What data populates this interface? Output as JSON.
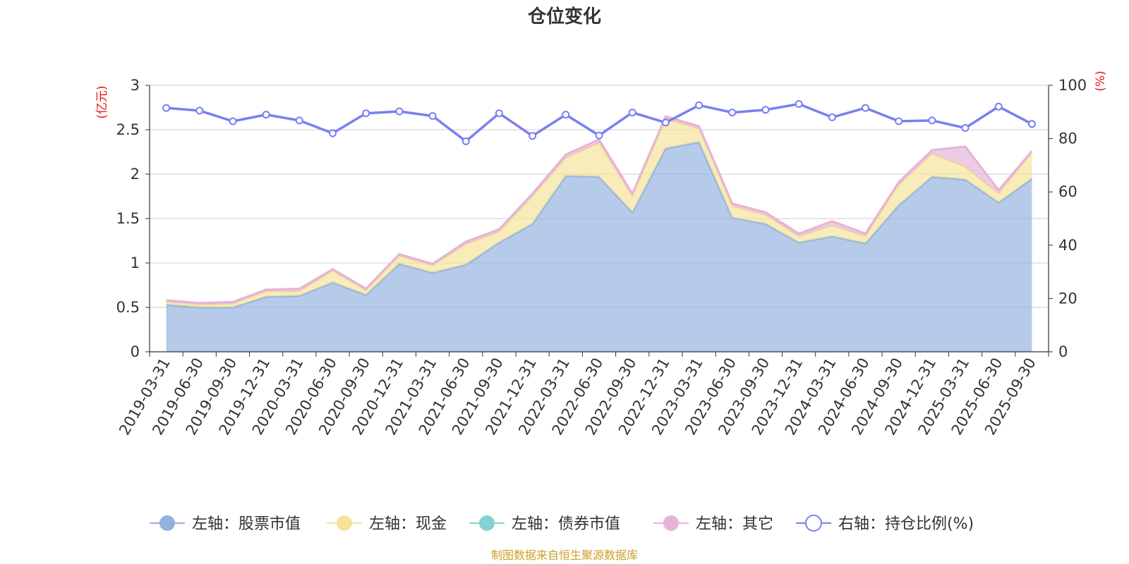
{
  "chart_data": {
    "type": "area",
    "title": "仓位变化",
    "left_axis": {
      "unit": "(亿元)",
      "min": 0,
      "max": 3,
      "ticks": [
        "0",
        "0.5",
        "1",
        "1.5",
        "2",
        "2.5",
        "3"
      ]
    },
    "right_axis": {
      "unit": "(%)",
      "min": 0,
      "max": 100,
      "ticks": [
        "0",
        "20",
        "40",
        "60",
        "80",
        "100"
      ]
    },
    "grid": true,
    "legend_position": "bottom",
    "categories": [
      "2019-03-31",
      "2019-06-30",
      "2019-09-30",
      "2019-12-31",
      "2020-03-31",
      "2020-06-30",
      "2020-09-30",
      "2020-12-31",
      "2021-03-31",
      "2021-06-30",
      "2021-09-30",
      "2021-12-31",
      "2022-03-31",
      "2022-06-30",
      "2022-09-30",
      "2022-12-31",
      "2023-03-31",
      "2023-06-30",
      "2023-09-30",
      "2023-12-31",
      "2024-03-31",
      "2024-06-30",
      "2024-09-30",
      "2024-12-31",
      "2025-03-31",
      "2025-06-30",
      "2025-09-30"
    ],
    "series": [
      {
        "name": "左轴：股票市值",
        "axis": "left",
        "stacked": true,
        "color": "#93b1e0",
        "values": [
          0.53,
          0.5,
          0.5,
          0.62,
          0.63,
          0.78,
          0.64,
          0.99,
          0.89,
          0.98,
          1.23,
          1.44,
          1.98,
          1.97,
          1.57,
          2.29,
          2.36,
          1.51,
          1.44,
          1.23,
          1.3,
          1.22,
          1.65,
          1.97,
          1.94,
          1.68,
          1.95
        ]
      },
      {
        "name": "左轴：现金",
        "axis": "left",
        "stacked": true,
        "color": "#f5e49a",
        "values": [
          0.03,
          0.03,
          0.04,
          0.06,
          0.05,
          0.13,
          0.05,
          0.09,
          0.08,
          0.23,
          0.12,
          0.31,
          0.2,
          0.38,
          0.18,
          0.33,
          0.15,
          0.13,
          0.1,
          0.07,
          0.12,
          0.08,
          0.23,
          0.26,
          0.14,
          0.1,
          0.29
        ]
      },
      {
        "name": "左轴：债券市值",
        "axis": "left",
        "stacked": true,
        "color": "#86d1d1",
        "values": [
          0,
          0,
          0,
          0,
          0,
          0,
          0,
          0,
          0,
          0,
          0,
          0,
          0,
          0,
          0,
          0,
          0,
          0,
          0,
          0,
          0,
          0,
          0,
          0,
          0,
          0,
          0
        ]
      },
      {
        "name": "左轴：其它",
        "axis": "left",
        "stacked": true,
        "color": "#e6b3d9",
        "values": [
          0.02,
          0.02,
          0.02,
          0.02,
          0.03,
          0.02,
          0.02,
          0.02,
          0.02,
          0.03,
          0.03,
          0.03,
          0.04,
          0.04,
          0.03,
          0.03,
          0.03,
          0.03,
          0.03,
          0.03,
          0.05,
          0.03,
          0.03,
          0.04,
          0.23,
          0.04,
          0.02
        ]
      },
      {
        "name": "右轴：持仓比例(%)",
        "axis": "right",
        "type": "line",
        "color": "#7a7ff0",
        "values": [
          91.5,
          90.5,
          86.5,
          89,
          86.8,
          82,
          89.5,
          90.2,
          88.5,
          79,
          89.5,
          81,
          89,
          81.2,
          89.8,
          86,
          92.5,
          89.8,
          90.8,
          93,
          88,
          91.5,
          86.5,
          86.8,
          84,
          92,
          85.5
        ]
      }
    ],
    "source_note": "制图数据来自恒生聚源数据库"
  }
}
